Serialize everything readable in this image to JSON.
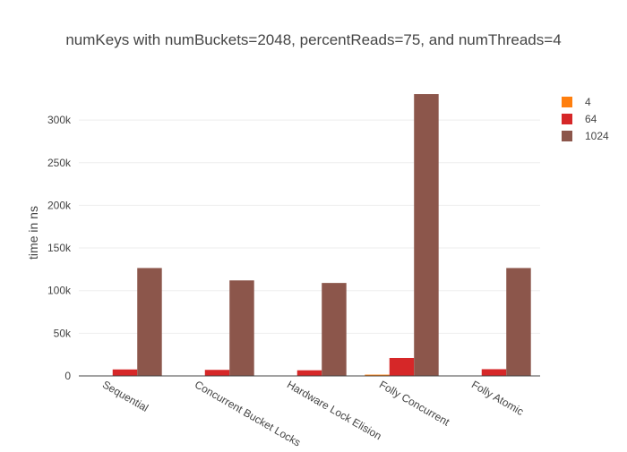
{
  "chart_data": {
    "type": "bar",
    "title": "numKeys with numBuckets=2048, percentReads=75, and numThreads=4",
    "xlabel": "",
    "ylabel": "time in ns",
    "categories": [
      "Sequential",
      "Concurrent Bucket Locks",
      "Hardware Lock Elision",
      "Folly Concurrent",
      "Folly Atomic"
    ],
    "series": [
      {
        "name": "4",
        "color": "#ff7f0e",
        "values": [
          350,
          400,
          350,
          1500,
          400
        ]
      },
      {
        "name": "64",
        "color": "#d62728",
        "values": [
          7600,
          7100,
          6600,
          21000,
          7900
        ]
      },
      {
        "name": "1024",
        "color": "#8c564b",
        "values": [
          126500,
          112000,
          109000,
          330500,
          126500
        ]
      }
    ],
    "ylim": [
      0,
      340000
    ],
    "y_ticks": [
      0,
      50000,
      100000,
      150000,
      200000,
      250000,
      300000
    ],
    "y_tick_labels": [
      "0",
      "50k",
      "100k",
      "150k",
      "200k",
      "250k",
      "300k"
    ],
    "grid": true,
    "legend_position": "top-right"
  }
}
